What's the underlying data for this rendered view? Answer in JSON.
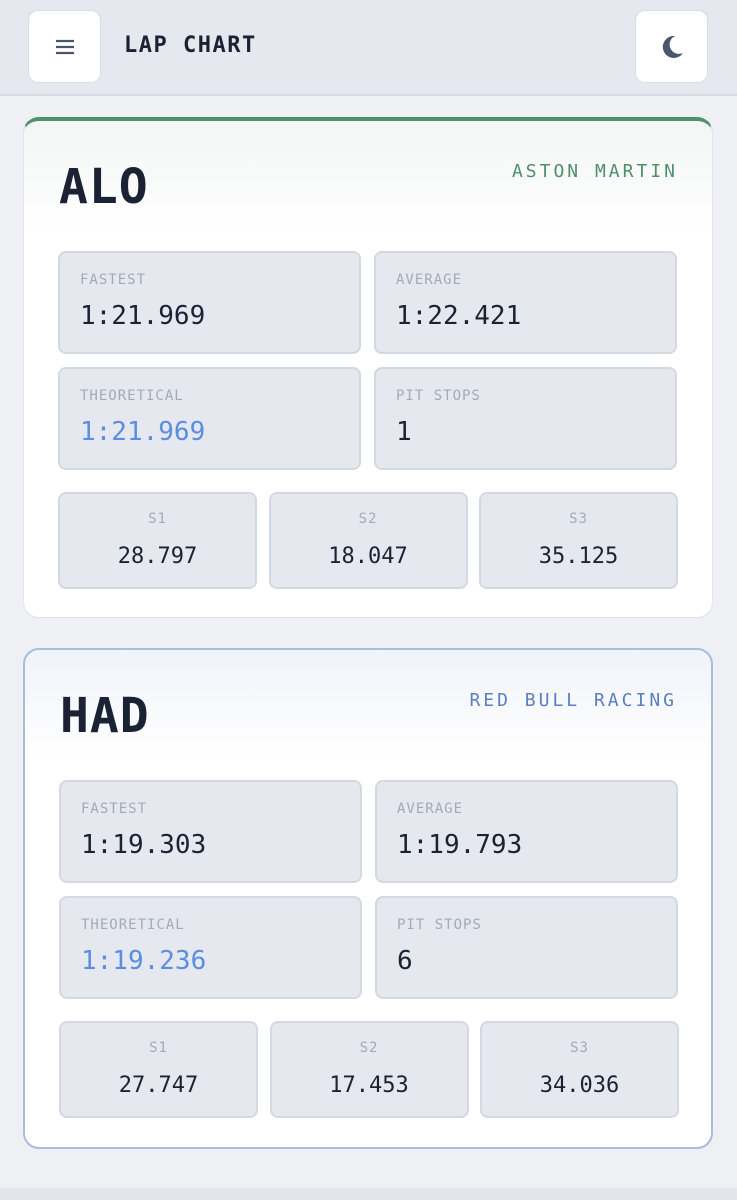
{
  "header": {
    "title": "LAP CHART"
  },
  "drivers": [
    {
      "code": "ALO",
      "team": "ASTON MARTIN",
      "stats": [
        {
          "label": "FASTEST",
          "value": "1:21.969"
        },
        {
          "label": "AVERAGE",
          "value": "1:22.421"
        },
        {
          "label": "THEORETICAL",
          "value": "1:21.969"
        },
        {
          "label": "PIT STOPS",
          "value": "1"
        }
      ],
      "sectors": [
        {
          "label": "S1",
          "value": "28.797"
        },
        {
          "label": "S2",
          "value": "18.047"
        },
        {
          "label": "S3",
          "value": "35.125"
        }
      ]
    },
    {
      "code": "HAD",
      "team": "RED BULL RACING",
      "stats": [
        {
          "label": "FASTEST",
          "value": "1:19.303"
        },
        {
          "label": "AVERAGE",
          "value": "1:19.793"
        },
        {
          "label": "THEORETICAL",
          "value": "1:19.236"
        },
        {
          "label": "PIT STOPS",
          "value": "6"
        }
      ],
      "sectors": [
        {
          "label": "S1",
          "value": "27.747"
        },
        {
          "label": "S2",
          "value": "17.453"
        },
        {
          "label": "S3",
          "value": "34.036"
        }
      ]
    }
  ]
}
